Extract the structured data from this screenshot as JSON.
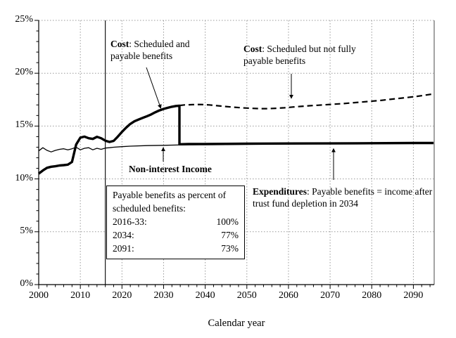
{
  "chart_data": {
    "type": "line",
    "title": "",
    "xlabel": "Calendar year",
    "ylabel": "",
    "x_range": [
      2000,
      2095
    ],
    "y_range": [
      0,
      25
    ],
    "y_unit": "percent",
    "grid": "dotted horizontal every 5%, dotted vertical every decade",
    "legend_position": "none (inline annotations)",
    "x_major_ticks": [
      2000,
      2010,
      2020,
      2030,
      2040,
      2050,
      2060,
      2070,
      2080,
      2090
    ],
    "x_tick_labels": [
      "2000",
      "2010",
      "2020",
      "2030",
      "2040",
      "2050",
      "2060",
      "2070",
      "2080",
      "2090"
    ],
    "x_minor_tick_step": 2,
    "y_major_ticks": [
      0,
      5,
      10,
      15,
      20,
      25
    ],
    "y_tick_labels": [
      "0%",
      "5%",
      "10%",
      "15%",
      "20%",
      "25%"
    ],
    "y_minor_tick_step": 1,
    "historical_divider_year": 2016,
    "series": [
      {
        "name": "cost-scheduled-and-payable-then-expenditures",
        "style": "thick-solid",
        "points": [
          [
            2000,
            10.5
          ],
          [
            2001,
            10.8
          ],
          [
            2002,
            11.05
          ],
          [
            2003,
            11.15
          ],
          [
            2004,
            11.2
          ],
          [
            2005,
            11.27
          ],
          [
            2006,
            11.3
          ],
          [
            2007,
            11.35
          ],
          [
            2008,
            11.6
          ],
          [
            2009,
            13.25
          ],
          [
            2010,
            13.9
          ],
          [
            2011,
            14.0
          ],
          [
            2012,
            13.85
          ],
          [
            2013,
            13.78
          ],
          [
            2014,
            13.98
          ],
          [
            2015,
            13.85
          ],
          [
            2016,
            13.62
          ],
          [
            2017,
            13.5
          ],
          [
            2018,
            13.6
          ],
          [
            2019,
            14.0
          ],
          [
            2020,
            14.45
          ],
          [
            2021,
            14.85
          ],
          [
            2022,
            15.2
          ],
          [
            2023,
            15.45
          ],
          [
            2024,
            15.62
          ],
          [
            2025,
            15.78
          ],
          [
            2026,
            15.93
          ],
          [
            2027,
            16.1
          ],
          [
            2028,
            16.3
          ],
          [
            2029,
            16.48
          ],
          [
            2030,
            16.62
          ],
          [
            2031,
            16.73
          ],
          [
            2032,
            16.83
          ],
          [
            2033,
            16.9
          ],
          [
            2033.8,
            16.93
          ],
          [
            2033.8,
            13.28
          ],
          [
            2036,
            13.3
          ],
          [
            2040,
            13.3
          ],
          [
            2050,
            13.33
          ],
          [
            2060,
            13.35
          ],
          [
            2070,
            13.36
          ],
          [
            2080,
            13.38
          ],
          [
            2090,
            13.4
          ],
          [
            2095,
            13.4
          ]
        ]
      },
      {
        "name": "non-interest-income",
        "style": "thin-solid",
        "points": [
          [
            2000,
            12.65
          ],
          [
            2001,
            12.95
          ],
          [
            2002,
            12.7
          ],
          [
            2003,
            12.55
          ],
          [
            2004,
            12.7
          ],
          [
            2005,
            12.8
          ],
          [
            2006,
            12.85
          ],
          [
            2007,
            12.75
          ],
          [
            2008,
            12.85
          ],
          [
            2009,
            13.0
          ],
          [
            2010,
            12.75
          ],
          [
            2011,
            12.9
          ],
          [
            2012,
            12.95
          ],
          [
            2013,
            12.75
          ],
          [
            2014,
            12.9
          ],
          [
            2015,
            12.8
          ],
          [
            2016,
            12.92
          ],
          [
            2017,
            12.95
          ],
          [
            2018,
            13.0
          ],
          [
            2020,
            13.05
          ],
          [
            2022,
            13.1
          ],
          [
            2026,
            13.15
          ],
          [
            2030,
            13.18
          ],
          [
            2034,
            13.22
          ],
          [
            2040,
            13.25
          ],
          [
            2050,
            13.28
          ],
          [
            2060,
            13.3
          ],
          [
            2070,
            13.32
          ],
          [
            2080,
            13.33
          ],
          [
            2090,
            13.34
          ],
          [
            2095,
            13.35
          ]
        ]
      },
      {
        "name": "cost-scheduled-not-fully-payable",
        "style": "dashed",
        "points": [
          [
            2033.8,
            16.95
          ],
          [
            2035,
            17.0
          ],
          [
            2037,
            17.03
          ],
          [
            2039,
            17.04
          ],
          [
            2041,
            17.0
          ],
          [
            2043,
            16.92
          ],
          [
            2045,
            16.85
          ],
          [
            2047,
            16.78
          ],
          [
            2049,
            16.72
          ],
          [
            2051,
            16.68
          ],
          [
            2053,
            16.65
          ],
          [
            2055,
            16.65
          ],
          [
            2057,
            16.68
          ],
          [
            2059,
            16.73
          ],
          [
            2061,
            16.8
          ],
          [
            2063,
            16.86
          ],
          [
            2065,
            16.92
          ],
          [
            2067,
            16.97
          ],
          [
            2070,
            17.05
          ],
          [
            2073,
            17.12
          ],
          [
            2076,
            17.22
          ],
          [
            2079,
            17.32
          ],
          [
            2082,
            17.42
          ],
          [
            2085,
            17.55
          ],
          [
            2088,
            17.68
          ],
          [
            2091,
            17.82
          ],
          [
            2095,
            18.05
          ]
        ]
      }
    ]
  },
  "annotations": {
    "cost_payable": {
      "bold": "Cost",
      "rest": ": Scheduled and payable benefits"
    },
    "cost_scheduled": {
      "bold": "Cost",
      "rest": ": Scheduled but not fully payable benefits"
    },
    "income": {
      "text": "Non-interest Income"
    },
    "expenditures": {
      "bold": "Expenditures",
      "rest": ": Payable benefits = income after trust fund depletion in 2034"
    }
  },
  "info_box": {
    "title": "Payable benefits as percent of scheduled benefits:",
    "rows": [
      {
        "label": "2016-33:",
        "value": "100%"
      },
      {
        "label": "2034:",
        "value": "77%"
      },
      {
        "label": "2091:",
        "value": "73%"
      }
    ]
  },
  "colors": {
    "line": "#000000",
    "grid": "#999999",
    "right_frame": "#9a9a9a",
    "background": "#ffffff"
  }
}
